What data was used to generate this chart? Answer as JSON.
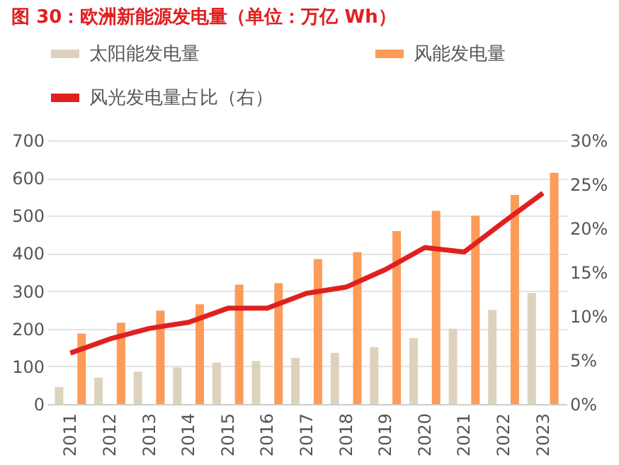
{
  "chart_data": {
    "type": "bar",
    "title": "图 30：欧洲新能源发电量（单位：万亿 Wh）",
    "categories": [
      "2011",
      "2012",
      "2013",
      "2014",
      "2015",
      "2016",
      "2017",
      "2018",
      "2019",
      "2020",
      "2021",
      "2022",
      "2023"
    ],
    "series": [
      {
        "name": "太阳能发电量",
        "color": "#ddd3bd",
        "values": [
          45,
          70,
          86,
          97,
          110,
          114,
          123,
          136,
          151,
          175,
          200,
          250,
          295
        ]
      },
      {
        "name": "风能发电量",
        "color": "#fd9b58",
        "values": [
          187,
          216,
          248,
          265,
          317,
          321,
          385,
          403,
          459,
          513,
          500,
          555,
          614
        ]
      },
      {
        "name": "风光发电量占比（右）",
        "color": "#e02020",
        "type": "line",
        "axis": "y2",
        "values": [
          5.8,
          7.4,
          8.6,
          9.3,
          10.9,
          10.9,
          12.6,
          13.3,
          15.3,
          17.8,
          17.3,
          20.7,
          24.0
        ]
      }
    ],
    "ylim": [
      0,
      700
    ],
    "yticks": [
      0,
      100,
      200,
      300,
      400,
      500,
      600,
      700
    ],
    "y2lim": [
      0,
      30
    ],
    "y2ticks": [
      {
        "value": 0,
        "label": "0%"
      },
      {
        "value": 5,
        "label": "5%"
      },
      {
        "value": 10,
        "label": "10%"
      },
      {
        "value": 15,
        "label": "15%"
      },
      {
        "value": 20,
        "label": "20%"
      },
      {
        "value": 25,
        "label": "25%"
      },
      {
        "value": 30,
        "label": "30%"
      }
    ],
    "grid": "y",
    "legend": "top",
    "marker": "none",
    "line_style": "solid"
  }
}
